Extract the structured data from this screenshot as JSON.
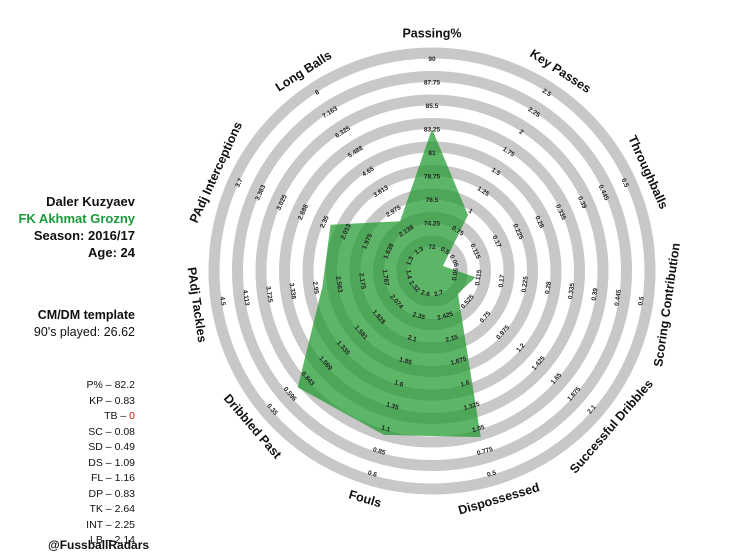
{
  "player": {
    "name": "Daler Kuzyaev",
    "team": "FK Akhmat Grozny",
    "season": "Season: 2016/17",
    "age": "Age: 24"
  },
  "template": {
    "name": "CM/DM template",
    "minutes": "90's played: 26.62"
  },
  "stats": [
    {
      "abbr": "P%",
      "value": "82.2"
    },
    {
      "abbr": "KP",
      "value": "0.83"
    },
    {
      "abbr": "TB",
      "value": "0"
    },
    {
      "abbr": "SC",
      "value": "0.08"
    },
    {
      "abbr": "SD",
      "value": "0.49"
    },
    {
      "abbr": "DS",
      "value": "1.09"
    },
    {
      "abbr": "FL",
      "value": "1.16"
    },
    {
      "abbr": "DP",
      "value": "0.83"
    },
    {
      "abbr": "TK",
      "value": "2.64"
    },
    {
      "abbr": "INT",
      "value": "2.25"
    },
    {
      "abbr": "LB",
      "value": "2.14"
    }
  ],
  "credit": "@FussballRadars",
  "colors": {
    "ring": "#c8c8c8",
    "fill": "#1f9a2c",
    "fill_opacity": 0.72,
    "highlight": "#1a9a3a",
    "zero_value": "#dd1111"
  },
  "chart_data": {
    "type": "radar",
    "axes": [
      {
        "label": "Passing%",
        "ticks": [
          "72",
          "74.25",
          "76.5",
          "78.75",
          "81",
          "83.25",
          "85.5",
          "87.75",
          "90"
        ],
        "min": 69.75,
        "max": 90,
        "value": 82.2
      },
      {
        "label": "Key Passes",
        "ticks": [
          "0.5",
          "0.75",
          "1",
          "1.25",
          "1.5",
          "1.75",
          "2",
          "2.25",
          "2.5"
        ],
        "min": 0.25,
        "max": 2.5,
        "value": 0.83
      },
      {
        "label": "Throughballs",
        "ticks": [
          "0.06",
          "0.115",
          "0.17",
          "0.225",
          "0.28",
          "0.335",
          "0.39",
          "0.445",
          "0.5"
        ],
        "min": 0.005,
        "max": 0.5,
        "value": 0
      },
      {
        "label": "Scoring Contribution",
        "ticks": [
          "0.06",
          "0.115",
          "0.17",
          "0.225",
          "0.28",
          "0.335",
          "0.39",
          "0.445",
          "0.5"
        ],
        "min": 0.005,
        "max": 0.5,
        "value": 0.08
      },
      {
        "label": "Successful Dribbles",
        "ticks": [
          "0.525",
          "0.75",
          "0.975",
          "1.2",
          "1.425",
          "1.65",
          "1.875",
          "2.1"
        ],
        "min": 0.3,
        "max": 2.1,
        "value": 0.49
      },
      {
        "label": "Dispossessed",
        "ticks": [
          "2.7",
          "2.425",
          "2.15",
          "1.875",
          "1.6",
          "1.325",
          "1.05",
          "0.775",
          "0.5"
        ],
        "min": 2.975,
        "max": 0.5,
        "value": 1.09
      },
      {
        "label": "Fouls",
        "ticks": [
          "2.6",
          "2.35",
          "2.1",
          "1.85",
          "1.6",
          "1.35",
          "1.1",
          "0.85",
          "0.6"
        ],
        "min": 2.85,
        "max": 0.6,
        "value": 1.16
      },
      {
        "label": "Dribbled Past",
        "ticks": [
          "2.32",
          "2.074",
          "1.828",
          "1.581",
          "1.335",
          "1.089",
          "0.843",
          "0.596",
          "0.35"
        ],
        "min": 2.566,
        "max": 0.35,
        "value": 0.83
      },
      {
        "label": "PAdj Tackles",
        "ticks": [
          "1.4",
          "1.787",
          "2.175",
          "2.563",
          "2.95",
          "3.338",
          "3.725",
          "4.113",
          "4.5"
        ],
        "min": 1.013,
        "max": 4.5,
        "value": 2.64
      },
      {
        "label": "PAdj Interceptions",
        "ticks": [
          "1.3",
          "1.638",
          "1.975",
          "2.013",
          "2.35",
          "2.688",
          "3.025",
          "3.363",
          "3.7"
        ],
        "min": 0.963,
        "max": 3.7,
        "value": 2.25
      },
      {
        "label": "Long Balls",
        "ticks": [
          "1.3",
          "2.138",
          "2.975",
          "3.813",
          "4.65",
          "5.488",
          "6.325",
          "7.163",
          "8"
        ],
        "min": 0.463,
        "max": 8,
        "value": 2.14
      }
    ],
    "rings": 9,
    "grid": true
  }
}
